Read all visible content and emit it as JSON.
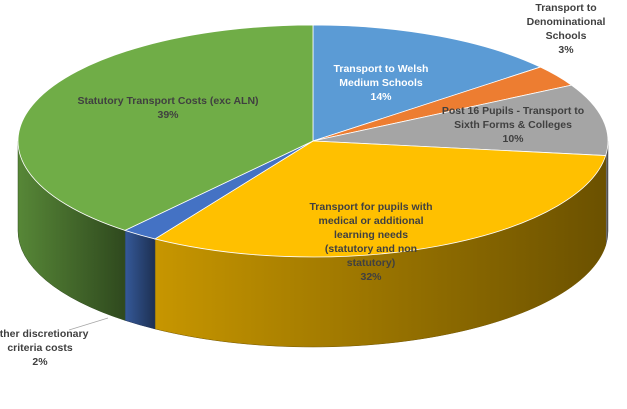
{
  "chart_data": {
    "type": "pie",
    "title": "",
    "slices": [
      {
        "label": [
          "Transport to Welsh",
          "Medium Schools",
          "14%"
        ],
        "value": 14,
        "color": "#5b9bd5"
      },
      {
        "label": [
          "Transport to",
          "Denominational",
          "Schools",
          "3%"
        ],
        "value": 3,
        "color": "#ed7d31"
      },
      {
        "label": [
          "Post 16 Pupils - Transport to",
          "Sixth Forms & Colleges",
          "10%"
        ],
        "value": 10,
        "color": "#a5a5a5"
      },
      {
        "label": [
          "Transport for pupils with",
          "medical or additional",
          "learning needs",
          "(statutory and non",
          "statutory)",
          "32%"
        ],
        "value": 32,
        "color": "#ffc000"
      },
      {
        "label": [
          "Other discretionary",
          "criteria costs",
          "2%"
        ],
        "value": 2,
        "color": "#4472c4"
      },
      {
        "label": [
          "Statutory Transport Costs (exc ALN)",
          "39%"
        ],
        "value": 39,
        "color": "#70ad47"
      }
    ]
  }
}
